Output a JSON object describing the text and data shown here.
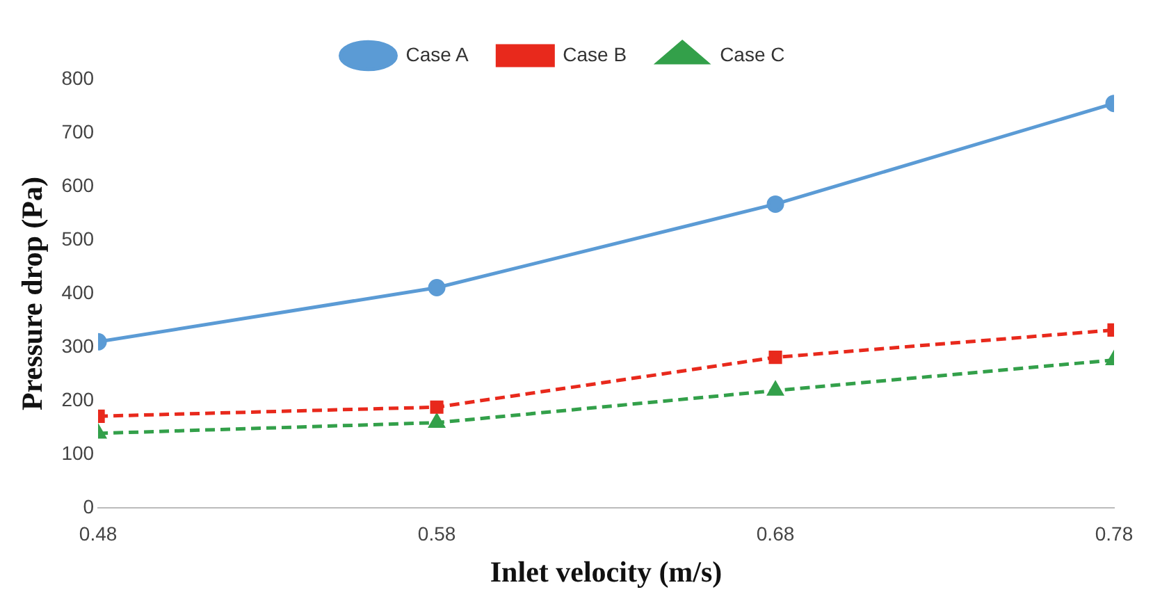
{
  "chart_data": {
    "type": "line",
    "xlabel": "Inlet velocity (m/s)",
    "ylabel": "Pressure drop (Pa)",
    "x": [
      0.48,
      0.58,
      0.68,
      0.78
    ],
    "series": [
      {
        "name": "Case A",
        "color": "#5b9bd5",
        "values": [
          310,
          411,
          567,
          755
        ],
        "marker": "circle",
        "line_style": "solid"
      },
      {
        "name": "Case B",
        "color": "#e8291c",
        "values": [
          171,
          188,
          281,
          332
        ],
        "marker": "square",
        "line_style": "dashed"
      },
      {
        "name": "Case C",
        "color": "#33a04a",
        "values": [
          139,
          159,
          219,
          276
        ],
        "marker": "triangle",
        "line_style": "dashed"
      }
    ],
    "xlim": [
      0.48,
      0.78
    ],
    "xticks": [
      0.48,
      0.58,
      0.68,
      0.78
    ],
    "ylim": [
      0,
      800
    ],
    "yticks": [
      0,
      100,
      200,
      300,
      400,
      500,
      600,
      700,
      800
    ],
    "grid": false,
    "legend": "top"
  }
}
